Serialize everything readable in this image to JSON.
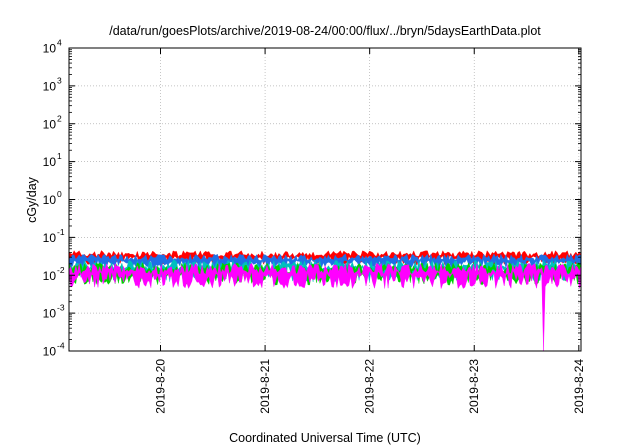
{
  "chart_data": {
    "type": "area",
    "title": "/data/run/goesPlots/archive/2019-08-24/00:00/flux/../bryn/5daysEarthData.plot",
    "xlabel": "Coordinated Universal Time (UTC)",
    "ylabel": "cGy/day",
    "y_scale": "log",
    "ylim": [
      0.0001,
      10000
    ],
    "y_ticks": [
      {
        "base": "10",
        "exp": "-4",
        "value": 0.0001
      },
      {
        "base": "10",
        "exp": "-3",
        "value": 0.001
      },
      {
        "base": "10",
        "exp": "-2",
        "value": 0.01
      },
      {
        "base": "10",
        "exp": "-1",
        "value": 0.1
      },
      {
        "base": "10",
        "exp": "0",
        "value": 1
      },
      {
        "base": "10",
        "exp": "1",
        "value": 10
      },
      {
        "base": "10",
        "exp": "2",
        "value": 100
      },
      {
        "base": "10",
        "exp": "3",
        "value": 1000
      },
      {
        "base": "10",
        "exp": "4",
        "value": 10000
      }
    ],
    "x_range": [
      "2019-08-19 03:00",
      "2019-08-24 00:30"
    ],
    "x_ticks": [
      "2019-8-20",
      "2019-8-21",
      "2019-8-22",
      "2019-8-23",
      "2019-8-24"
    ],
    "grid": true,
    "legend": "none",
    "series": [
      {
        "color": "#ff0000",
        "level_low": 0.018,
        "level_high": 0.055
      },
      {
        "color": "#1f6fe5",
        "level_low": 0.014,
        "level_high": 0.045
      },
      {
        "color": "#00bfbf",
        "level_low": 0.006,
        "level_high": 0.035
      },
      {
        "color": "#00d000",
        "level_low": 0.005,
        "level_high": 0.03
      },
      {
        "color": "#ff00ff",
        "level_low": 0.004,
        "level_high": 0.03,
        "dropout": {
          "x_start": "2019-08-23 15:30",
          "x_end": "2019-08-23 16:15",
          "min": 0.0001
        }
      }
    ]
  }
}
